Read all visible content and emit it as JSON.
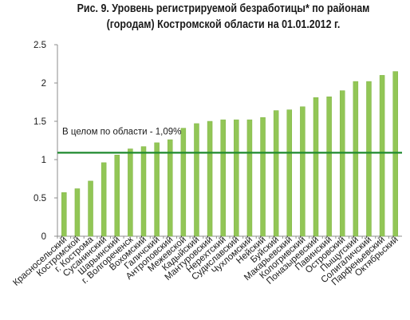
{
  "chart_data": {
    "type": "bar",
    "title_line1": "Рис. 9. Уровень регистрируемой безработицы* по районам",
    "title_line2": "(городам) Костромской области на 01.01.2012 г.",
    "categories": [
      "Красносельский",
      "Костромской",
      "г. Кострома",
      "Сусанинский",
      "Шарьинский",
      "г. Волгореченск",
      "Вохомский",
      "Галичский",
      "Антроповский",
      "Межевской",
      "Кадыйский",
      "Мантуровский",
      "Нерехтский",
      "Судиславский",
      "Чухломский",
      "Нейский",
      "Буйский",
      "Макарьевский",
      "Кологривский",
      "Поназыревский",
      "Павинский",
      "Островский",
      "Пыщугский",
      "Солигаличский",
      "Парфеньевский",
      "Октябрьский"
    ],
    "values": [
      0.57,
      0.62,
      0.72,
      0.96,
      1.06,
      1.14,
      1.17,
      1.22,
      1.26,
      1.41,
      1.47,
      1.5,
      1.52,
      1.52,
      1.52,
      1.55,
      1.64,
      1.65,
      1.69,
      1.81,
      1.82,
      1.9,
      2.02,
      2.02,
      2.1,
      2.15
    ],
    "ylim": [
      0,
      2.5
    ],
    "yticks": [
      "0",
      "0.5",
      "1",
      "1.5",
      "2",
      "2.5"
    ],
    "ytick_values": [
      0,
      0.5,
      1,
      1.5,
      2,
      2.5
    ],
    "grid": false,
    "reference_line": {
      "value": 1.09,
      "label": "В целом по области - 1,09%"
    },
    "colors": {
      "bar": "#92c656",
      "bar_edge": "#7fb443",
      "reference_line": "#1f8a2e",
      "axis": "#8c8c8c",
      "text": "#1a1a1a"
    }
  }
}
